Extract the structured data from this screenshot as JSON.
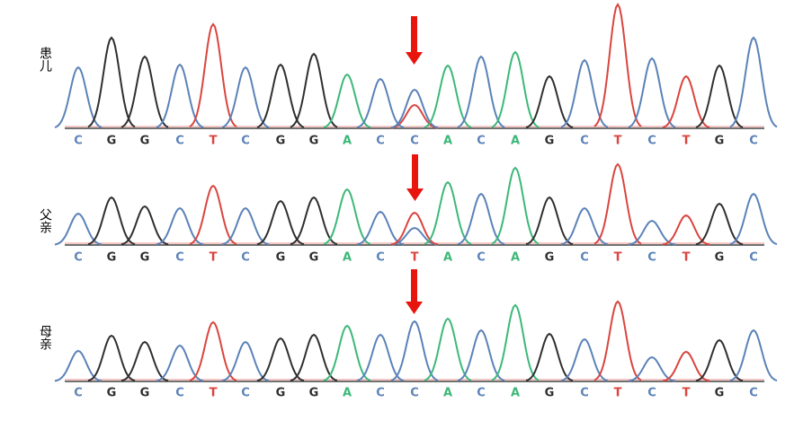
{
  "colors": {
    "A": "#3cb878",
    "C": "#5b82b8",
    "G": "#2f2f2f",
    "T": "#d9453f"
  },
  "panels": [
    {
      "label": "患儿",
      "bases": [
        "C",
        "G",
        "G",
        "C",
        "T",
        "C",
        "G",
        "G",
        "A",
        "C",
        "C",
        "A",
        "C",
        "A",
        "G",
        "C",
        "T",
        "C",
        "T",
        "G",
        "C"
      ],
      "heights": [
        68,
        101,
        80,
        71,
        116,
        68,
        71,
        83,
        60,
        55,
        43,
        70,
        80,
        85,
        58,
        76,
        138,
        78,
        58,
        70,
        101
      ],
      "secondary": {
        "position": 10,
        "color": "#d9453f",
        "height": 26
      }
    },
    {
      "label": "父亲",
      "bases": [
        "C",
        "G",
        "G",
        "C",
        "T",
        "C",
        "G",
        "G",
        "A",
        "C",
        "T",
        "A",
        "C",
        "A",
        "G",
        "C",
        "T",
        "C",
        "T",
        "G",
        "C"
      ],
      "heights": [
        35,
        53,
        43,
        41,
        66,
        41,
        49,
        53,
        62,
        37,
        36,
        70,
        57,
        86,
        53,
        41,
        90,
        27,
        33,
        46,
        57
      ],
      "secondary": {
        "position": 10,
        "color": "#5b82b8",
        "height": 19
      }
    },
    {
      "label": "母亲",
      "bases": [
        "C",
        "G",
        "G",
        "C",
        "T",
        "C",
        "G",
        "G",
        "A",
        "C",
        "C",
        "A",
        "C",
        "A",
        "G",
        "C",
        "T",
        "C",
        "T",
        "G",
        "C"
      ],
      "heights": [
        34,
        51,
        44,
        40,
        66,
        44,
        48,
        52,
        62,
        52,
        67,
        70,
        57,
        85,
        53,
        47,
        89,
        27,
        33,
        46,
        57
      ]
    }
  ]
}
